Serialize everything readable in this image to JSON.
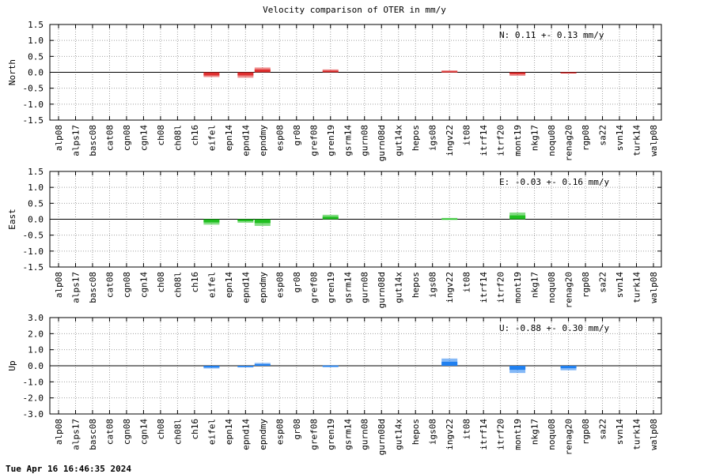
{
  "chart_data": {
    "type": "bar",
    "title": "Velocity comparison of OTER in mm/y",
    "footer": "Tue Apr 16 16:46:35 2024",
    "categories": [
      "alp08",
      "alps17",
      "basc08",
      "cat08",
      "cgn08",
      "cgn14",
      "ch08",
      "ch08l",
      "ch16",
      "eifel",
      "epn14",
      "epnd14",
      "epndmy",
      "esp08",
      "gr08",
      "gref08",
      "gren19",
      "gsrm14",
      "gurn08",
      "gurn08d",
      "gut14x",
      "hepos",
      "igs08",
      "ingv22",
      "it08",
      "itrf14",
      "itrf20",
      "mont19",
      "nkg17",
      "noqu08",
      "renag20",
      "rgp08",
      "sa22",
      "svn14",
      "turk14",
      "walp08"
    ],
    "grid": true,
    "panels": [
      {
        "ylabel": "North",
        "ylim": [
          -1.5,
          1.5
        ],
        "yticks": [
          "1.5",
          "1.0",
          "0.5",
          "0.0",
          "-0.5",
          "-1.0",
          "-1.5"
        ],
        "color": "#e03030",
        "stat": "N:   0.11 +-  0.13 mm/y",
        "values": {
          "eifel": -0.1,
          "epnd14": -0.1,
          "epndmy": 0.09,
          "gren19": 0.05,
          "ingv22": 0.03,
          "mont19": -0.06,
          "renag20": -0.01
        },
        "errors": {
          "eifel": 0.05,
          "epnd14": 0.07,
          "epndmy": 0.06,
          "gren19": 0.04,
          "ingv22": 0.03,
          "mont19": 0.05,
          "renag20": 0.01
        }
      },
      {
        "ylabel": "East",
        "ylim": [
          -1.5,
          1.5
        ],
        "yticks": [
          "1.5",
          "1.0",
          "0.5",
          "0.0",
          "-0.5",
          "-1.0",
          "-1.5"
        ],
        "color": "#20c020",
        "stat": "E:  -0.03 +-  0.16 mm/y",
        "values": {
          "eifel": -0.1,
          "epnd14": -0.06,
          "epndmy": -0.12,
          "gren19": 0.08,
          "ingv22": 0.02,
          "mont19": 0.12
        },
        "errors": {
          "eifel": 0.07,
          "epnd14": 0.05,
          "epndmy": 0.09,
          "gren19": 0.06,
          "ingv22": 0.02,
          "mont19": 0.09
        }
      },
      {
        "ylabel": "Up",
        "ylim": [
          -3.0,
          3.0
        ],
        "yticks": [
          "3.0",
          "2.0",
          "1.0",
          "0.0",
          "-1.0",
          "-2.0",
          "-3.0"
        ],
        "color": "#2080f0",
        "stat": "U:  -0.88 +-  0.30 mm/y",
        "values": {
          "eifel": -0.1,
          "epnd14": -0.05,
          "epndmy": 0.1,
          "gren19": 0.0,
          "ingv22": 0.25,
          "mont19": -0.25,
          "renag20": -0.15
        },
        "errors": {
          "eifel": 0.07,
          "epnd14": 0.05,
          "epndmy": 0.08,
          "gren19": 0.03,
          "ingv22": 0.2,
          "mont19": 0.2,
          "renag20": 0.13
        }
      }
    ]
  }
}
